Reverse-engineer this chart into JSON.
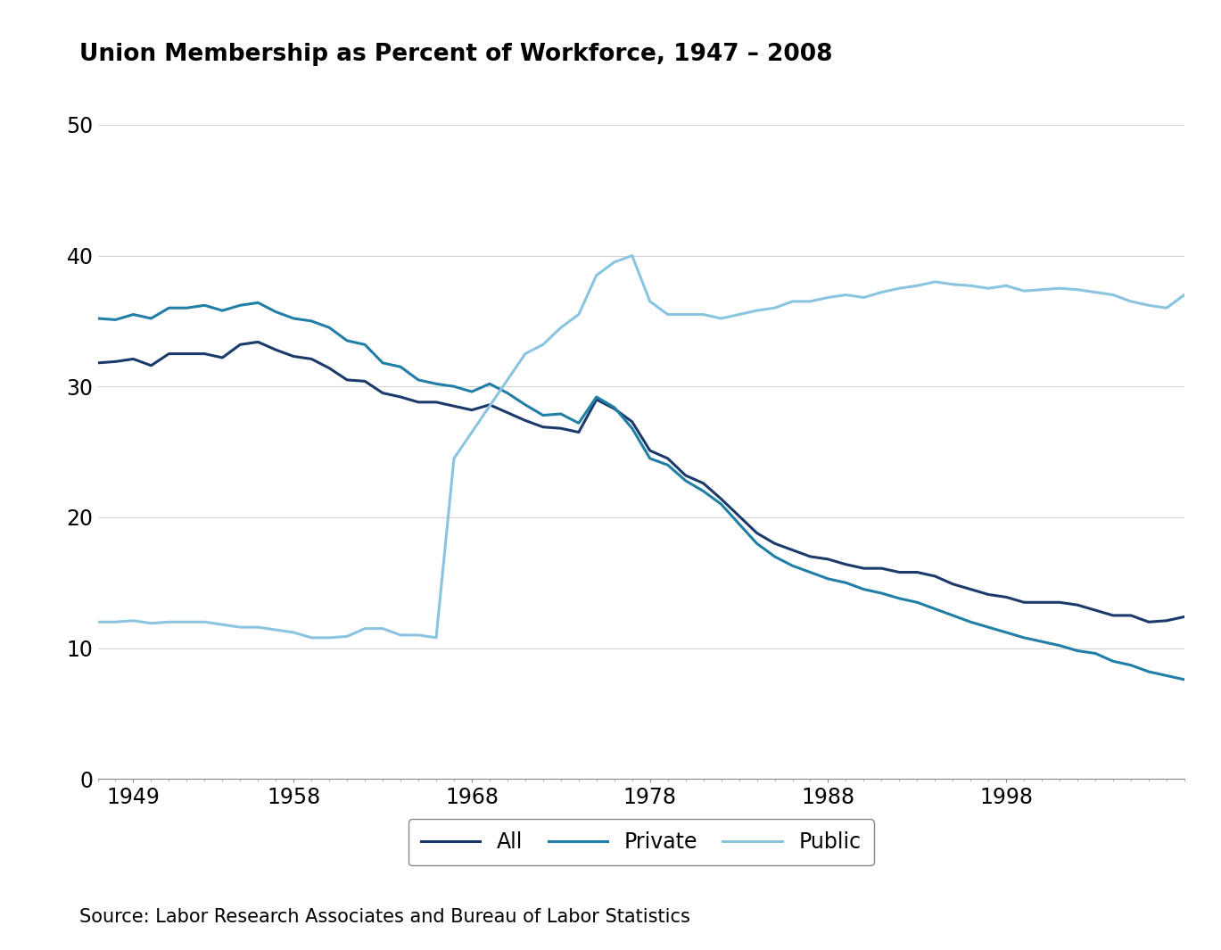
{
  "title": "Union Membership as Percent of Workforce, 1947 – 2008",
  "source_text": "Source: Labor Research Associates and Bureau of Labor Statistics",
  "legend_labels": [
    "All",
    "Private",
    "Public"
  ],
  "line_colors": {
    "All": "#1b3a6b",
    "Private": "#217ea6",
    "Public": "#8ac4e0"
  },
  "line_widths": {
    "All": 2.2,
    "Private": 2.2,
    "Public": 2.2
  },
  "ylim": [
    0,
    53
  ],
  "yticks": [
    0,
    10,
    20,
    30,
    40,
    50
  ],
  "xticks": [
    1949,
    1958,
    1968,
    1978,
    1988,
    1998
  ],
  "xlim": [
    1947,
    2008
  ],
  "background_color": "#ffffff",
  "data": {
    "years": [
      1947,
      1948,
      1949,
      1950,
      1951,
      1952,
      1953,
      1954,
      1955,
      1956,
      1957,
      1958,
      1959,
      1960,
      1961,
      1962,
      1963,
      1964,
      1965,
      1966,
      1967,
      1968,
      1969,
      1970,
      1971,
      1972,
      1973,
      1974,
      1975,
      1976,
      1977,
      1978,
      1979,
      1980,
      1981,
      1982,
      1983,
      1984,
      1985,
      1986,
      1987,
      1988,
      1989,
      1990,
      1991,
      1992,
      1993,
      1994,
      1995,
      1996,
      1997,
      1998,
      1999,
      2000,
      2001,
      2002,
      2003,
      2004,
      2005,
      2006,
      2007,
      2008
    ],
    "All": [
      31.8,
      31.9,
      32.1,
      31.6,
      32.5,
      32.5,
      32.5,
      32.2,
      33.2,
      33.4,
      32.8,
      32.3,
      32.1,
      31.4,
      30.5,
      30.4,
      29.5,
      29.2,
      28.8,
      28.8,
      28.5,
      28.2,
      28.6,
      28.0,
      27.4,
      26.9,
      26.8,
      26.5,
      29.0,
      28.3,
      27.3,
      25.1,
      24.5,
      23.2,
      22.6,
      21.4,
      20.1,
      18.8,
      18.0,
      17.5,
      17.0,
      16.8,
      16.4,
      16.1,
      16.1,
      15.8,
      15.8,
      15.5,
      14.9,
      14.5,
      14.1,
      13.9,
      13.5,
      13.5,
      13.5,
      13.3,
      12.9,
      12.5,
      12.5,
      12.0,
      12.1,
      12.4
    ],
    "Private": [
      35.2,
      35.1,
      35.5,
      35.2,
      36.0,
      36.0,
      36.2,
      35.8,
      36.2,
      36.4,
      35.7,
      35.2,
      35.0,
      34.5,
      33.5,
      33.2,
      31.8,
      31.5,
      30.5,
      30.2,
      30.0,
      29.6,
      30.2,
      29.5,
      28.6,
      27.8,
      27.9,
      27.2,
      29.2,
      28.4,
      26.8,
      24.5,
      24.0,
      22.8,
      22.0,
      21.0,
      19.5,
      18.0,
      17.0,
      16.3,
      15.8,
      15.3,
      15.0,
      14.5,
      14.2,
      13.8,
      13.5,
      13.0,
      12.5,
      12.0,
      11.6,
      11.2,
      10.8,
      10.5,
      10.2,
      9.8,
      9.6,
      9.0,
      8.7,
      8.2,
      7.9,
      7.6
    ],
    "Public": [
      12.0,
      12.0,
      12.1,
      11.9,
      12.0,
      12.0,
      12.0,
      11.8,
      11.6,
      11.6,
      11.4,
      11.2,
      10.8,
      10.8,
      10.9,
      11.5,
      11.5,
      11.0,
      11.0,
      10.8,
      24.5,
      26.5,
      28.5,
      30.5,
      32.5,
      33.2,
      34.5,
      35.5,
      38.5,
      39.5,
      40.0,
      36.5,
      35.5,
      35.5,
      35.5,
      35.2,
      35.5,
      35.8,
      36.0,
      36.5,
      36.5,
      36.8,
      37.0,
      36.8,
      37.2,
      37.5,
      37.7,
      38.0,
      37.8,
      37.7,
      37.5,
      37.7,
      37.3,
      37.4,
      37.5,
      37.4,
      37.2,
      37.0,
      36.5,
      36.2,
      36.0,
      37.0
    ]
  }
}
